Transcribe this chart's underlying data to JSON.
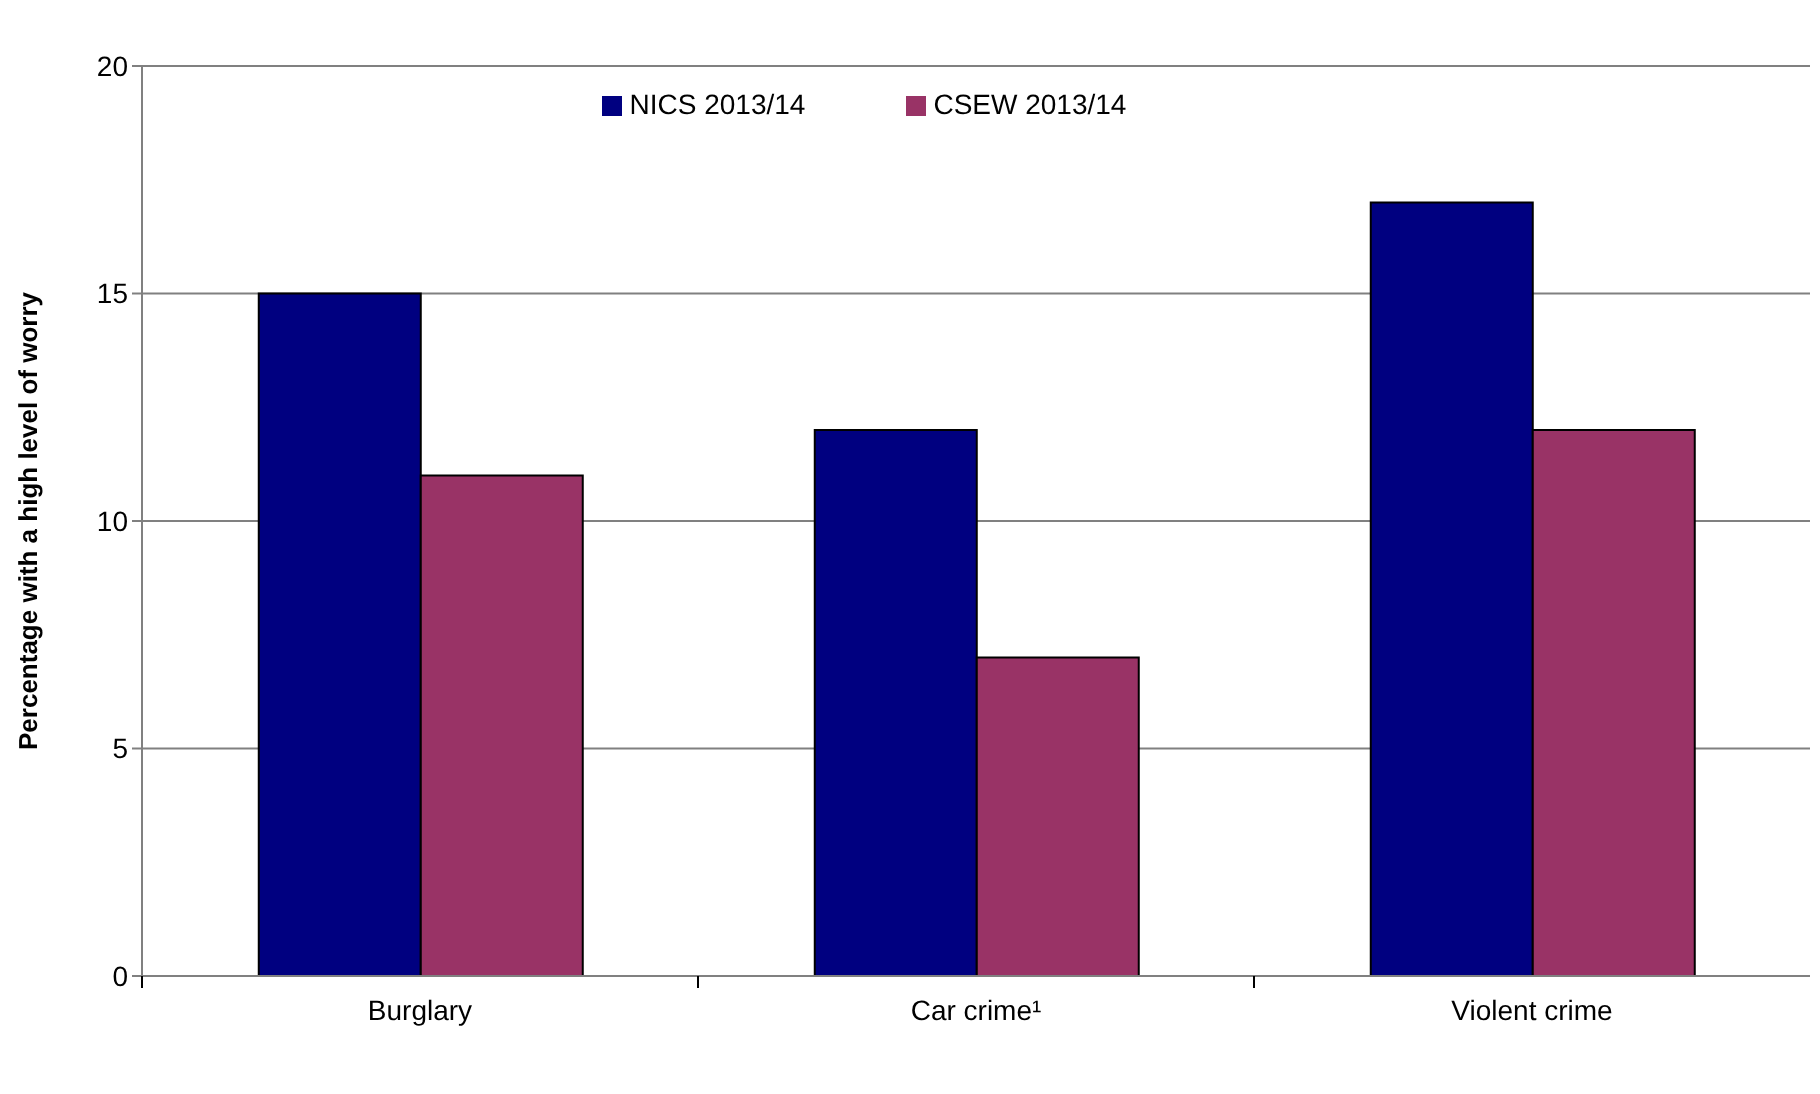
{
  "chart_data": {
    "type": "bar",
    "ylabel": "Percentage with a high level of worry",
    "categories": [
      "Burglary",
      "Car crime¹",
      "Violent crime"
    ],
    "series": [
      {
        "name": "NICS 2013/14",
        "color": "#000080",
        "values": [
          15,
          12,
          17
        ]
      },
      {
        "name": "CSEW 2013/14",
        "color": "#993366",
        "values": [
          11,
          7,
          12
        ]
      }
    ],
    "ylim": [
      0,
      20
    ],
    "yticks": [
      0,
      5,
      10,
      15,
      20
    ],
    "grid": "y",
    "legend": "top"
  }
}
